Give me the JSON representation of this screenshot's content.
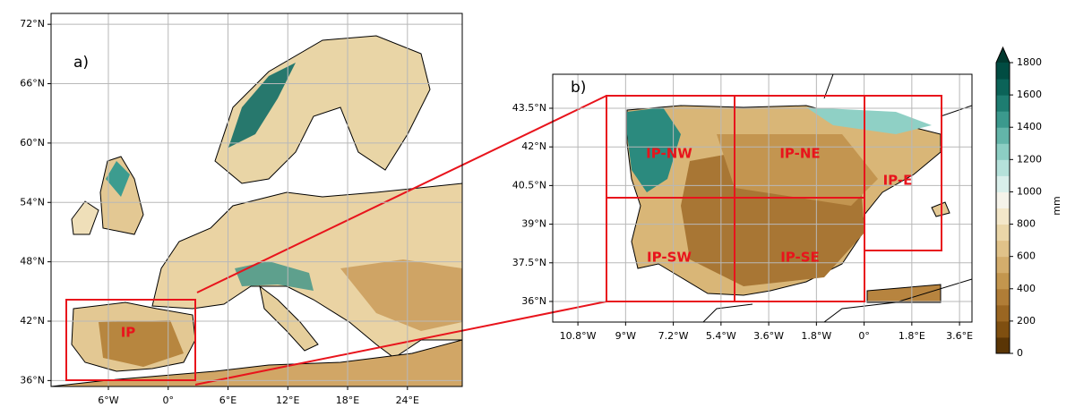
{
  "panel_a": {
    "label": "a)",
    "xlim": [
      -11.75,
      29.5
    ],
    "ylim": [
      35.4,
      73.1
    ],
    "lat_ticks": [
      {
        "value": 72,
        "label": "72°N"
      },
      {
        "value": 66,
        "label": "66°N"
      },
      {
        "value": 60,
        "label": "60°N"
      },
      {
        "value": 54,
        "label": "54°N"
      },
      {
        "value": 48,
        "label": "48°N"
      },
      {
        "value": 42,
        "label": "42°N"
      },
      {
        "value": 36,
        "label": "36°N"
      }
    ],
    "lon_ticks": [
      {
        "value": -6,
        "label": "6°W"
      },
      {
        "value": 0,
        "label": "0°"
      },
      {
        "value": 6,
        "label": "6°E"
      },
      {
        "value": 12,
        "label": "12°E"
      },
      {
        "value": 18,
        "label": "18°E"
      },
      {
        "value": 24,
        "label": "24°E"
      }
    ],
    "regions": [
      "IP"
    ]
  },
  "panel_b": {
    "label": "b)",
    "xlim": [
      -11.75,
      4.07
    ],
    "ylim": [
      35.2,
      44.82
    ],
    "lat_ticks": [
      {
        "value": 43.5,
        "label": "43.5°N"
      },
      {
        "value": 42,
        "label": "42°N"
      },
      {
        "value": 40.5,
        "label": "40.5°N"
      },
      {
        "value": 39,
        "label": "39°N"
      },
      {
        "value": 37.5,
        "label": "37.5°N"
      },
      {
        "value": 36,
        "label": "36°N"
      }
    ],
    "lon_ticks": [
      {
        "value": -10.8,
        "label": "10.8°W"
      },
      {
        "value": -9,
        "label": "9°W"
      },
      {
        "value": -7.2,
        "label": "7.2°W"
      },
      {
        "value": -5.4,
        "label": "5.4°W"
      },
      {
        "value": -3.6,
        "label": "3.6°W"
      },
      {
        "value": -1.8,
        "label": "1.8°W"
      },
      {
        "value": 0,
        "label": "0°"
      },
      {
        "value": 1.8,
        "label": "1.8°E"
      },
      {
        "value": 3.6,
        "label": "3.6°E"
      }
    ],
    "regions": [
      "IP-NW",
      "IP-NE",
      "IP-E",
      "IP-SW",
      "IP-SE"
    ]
  },
  "colorbar": {
    "unit": "mm",
    "lim": [
      0,
      1800
    ],
    "ticks": [
      0,
      200,
      400,
      600,
      800,
      1000,
      1200,
      1400,
      1600,
      1800
    ]
  }
}
